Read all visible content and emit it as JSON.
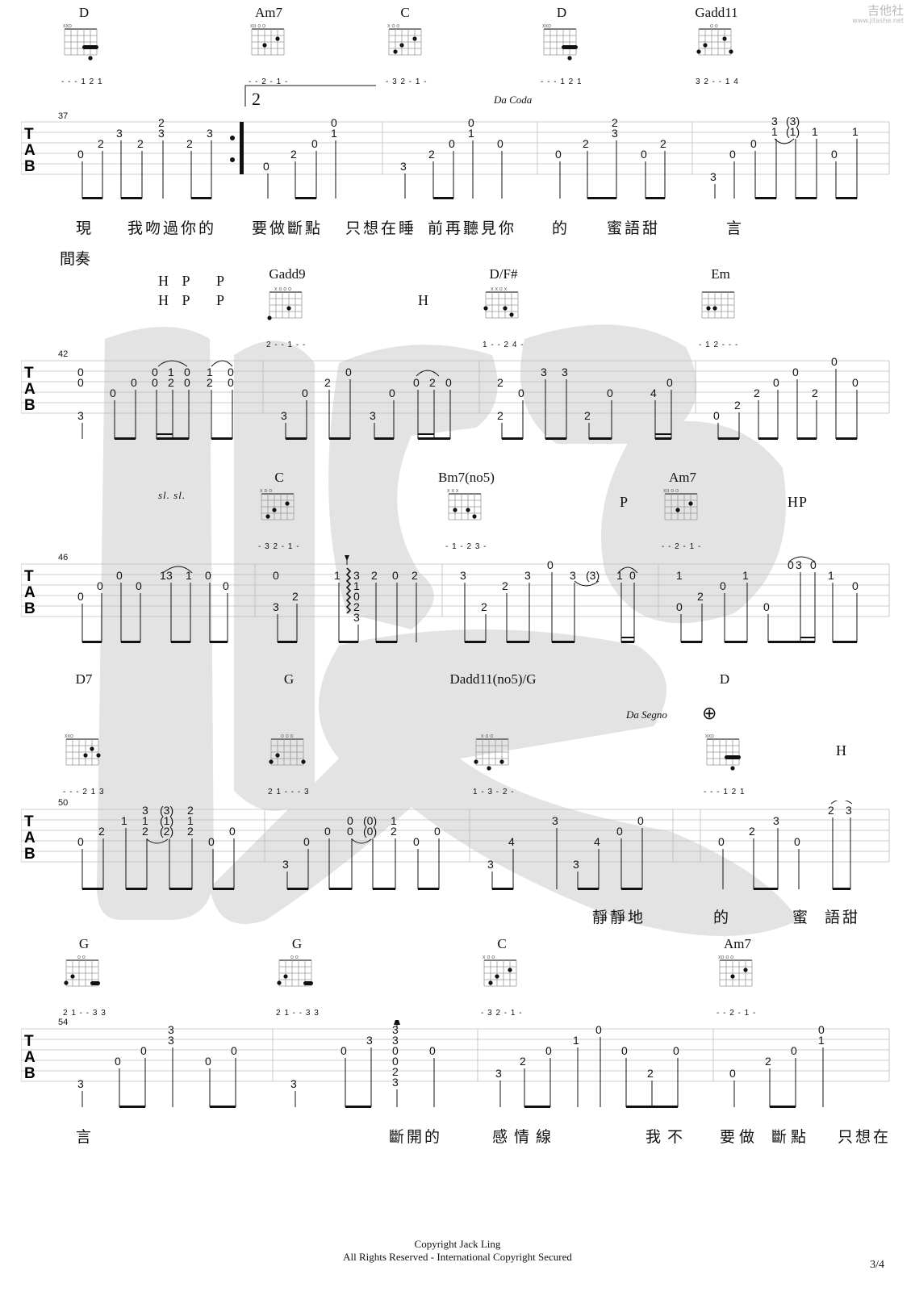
{
  "site_logo": {
    "name": "吉他社",
    "url": "www.jitashe.net"
  },
  "copyright": "Copyright Jack Ling",
  "rights": "All Rights Reserved - International Copyright Secured",
  "page_number": "3/4",
  "sections": {
    "interlude": "間奏"
  },
  "markers": {
    "volta": "2",
    "da_coda": "Da Coda",
    "da_segno": "Da Segno",
    "coda_symbol": "⊕"
  },
  "systems": [
    {
      "measure_start": "37",
      "chords": [
        {
          "name": "D",
          "fingering": "- - - 1 2 1"
        },
        {
          "name": "Am7",
          "fingering": "- - 2 - 1 -"
        },
        {
          "name": "C",
          "fingering": "- 3 2 - 1 -"
        },
        {
          "name": "D",
          "fingering": "- - - 1 2 1"
        },
        {
          "name": "Gadd11",
          "fingering": "3 2 - - 1 4"
        }
      ],
      "techniques": [],
      "lyrics": [
        "現",
        "我吻過你的",
        "要做斷點",
        "只想在睡",
        "前再聽見你",
        "的",
        "蜜語甜",
        "言"
      ]
    },
    {
      "measure_start": "42",
      "chords": [
        {
          "name": "Gadd9",
          "fingering": "2 - - 1 - -"
        },
        {
          "name": "D/F#",
          "fingering": "1 - - 2 4 -"
        },
        {
          "name": "Em",
          "fingering": "- 1 2 - - -"
        }
      ],
      "techniques": [
        "H P",
        "P",
        "H P",
        "P",
        "H"
      ],
      "lyrics": []
    },
    {
      "measure_start": "46",
      "chords": [
        {
          "name": "C",
          "fingering": "- 3 2 - 1 -"
        },
        {
          "name": "Bm7(no5)",
          "fingering": "- 1 - 2 3 -"
        },
        {
          "name": "Am7",
          "fingering": "- - 2 - 1 -"
        }
      ],
      "techniques": [
        "sl. sl.",
        "P",
        "HP"
      ],
      "lyrics": []
    },
    {
      "measure_start": "50",
      "chords": [
        {
          "name": "D7",
          "fingering": "- - - 2 1 3"
        },
        {
          "name": "G",
          "fingering": "2 1 - - - 3"
        },
        {
          "name": "Dadd11(no5)/G",
          "fingering": "1 - 3 - 2 -"
        },
        {
          "name": "D",
          "fingering": "- - - 1 2 1"
        }
      ],
      "techniques": [
        "H"
      ],
      "lyrics": [
        "靜靜地",
        "的",
        "蜜",
        "語甜"
      ]
    },
    {
      "measure_start": "54",
      "chords": [
        {
          "name": "G",
          "fingering": "2 1 - - 3 3"
        },
        {
          "name": "G",
          "fingering": "2 1 - - 3 3"
        },
        {
          "name": "C",
          "fingering": "- 3 2 - 1 -"
        },
        {
          "name": "Am7",
          "fingering": "- - 2 - 1 -"
        }
      ],
      "techniques": [],
      "lyrics": [
        "言",
        "斷開的",
        "感情線",
        "我不",
        "要做",
        "斷點",
        "只想在"
      ]
    }
  ]
}
